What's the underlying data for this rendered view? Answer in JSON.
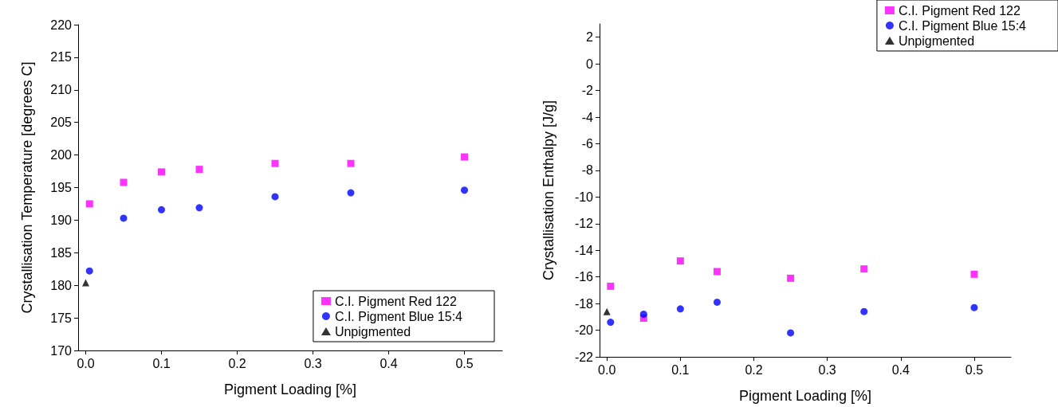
{
  "chart_data": [
    {
      "type": "scatter",
      "xlabel": "Pigment Loading [%]",
      "ylabel": "Crystallisation Temperature [degrees C]",
      "xlim": [
        -0.01,
        0.55
      ],
      "xticks": [
        {
          "value": 0,
          "label": "0.0"
        },
        {
          "value": 0.1,
          "label": "0.1"
        },
        {
          "value": 0.2,
          "label": "0.2"
        },
        {
          "value": 0.3,
          "label": "0.3"
        },
        {
          "value": 0.4,
          "label": "0.4"
        },
        {
          "value": 0.5,
          "label": "0.5"
        }
      ],
      "ylim": [
        170,
        220
      ],
      "yticks": [
        170,
        175,
        180,
        185,
        190,
        195,
        200,
        205,
        210,
        215,
        220
      ],
      "grid": false,
      "legend": "bottom right",
      "series": [
        {
          "name": "C.I. Pigment Red 122",
          "color": "#ff00ff",
          "marker": "square",
          "x": [
            0.005,
            0.05,
            0.1,
            0.15,
            0.25,
            0.35,
            0.5
          ],
          "values": [
            192.5,
            195.8,
            197.4,
            197.8,
            198.7,
            198.7,
            199.7
          ]
        },
        {
          "name": "C.I. Pigment Blue 15:4",
          "color": "#0000ff",
          "marker": "circle",
          "x": [
            0.005,
            0.05,
            0.1,
            0.15,
            0.25,
            0.35,
            0.5
          ],
          "values": [
            182.2,
            190.3,
            191.6,
            191.9,
            193.6,
            194.2,
            194.6
          ]
        },
        {
          "name": "Unpigmented",
          "color": "#000000",
          "marker": "triangle",
          "x": [
            0
          ],
          "values": [
            180.4
          ]
        }
      ]
    },
    {
      "type": "scatter",
      "xlabel": "Pigment Loading [%]",
      "ylabel": "Crystallisation Enthalpy [J/g]",
      "xlim": [
        -0.01,
        0.55
      ],
      "xticks": [
        {
          "value": 0,
          "label": "0.0"
        },
        {
          "value": 0.1,
          "label": "0.1"
        },
        {
          "value": 0.2,
          "label": "0.2"
        },
        {
          "value": 0.3,
          "label": "0.3"
        },
        {
          "value": 0.4,
          "label": "0.4"
        },
        {
          "value": 0.5,
          "label": "0.5"
        }
      ],
      "ylim": [
        -22,
        3
      ],
      "yticks": [
        -22,
        -20,
        -18,
        -16,
        -14,
        -12,
        -10,
        -8,
        -6,
        -4,
        -2,
        0,
        2
      ],
      "grid": false,
      "legend": "top right",
      "series": [
        {
          "name": "C.I. Pigment Red 122",
          "color": "#ff00ff",
          "marker": "square",
          "x": [
            0.005,
            0.05,
            0.1,
            0.15,
            0.25,
            0.35,
            0.5
          ],
          "values": [
            -16.7,
            -19.1,
            -14.8,
            -15.6,
            -16.1,
            -15.4,
            -15.8
          ]
        },
        {
          "name": "C.I. Pigment Blue 15:4",
          "color": "#0000ff",
          "marker": "circle",
          "x": [
            0.005,
            0.05,
            0.1,
            0.15,
            0.25,
            0.35,
            0.5
          ],
          "values": [
            -19.4,
            -18.8,
            -18.4,
            -17.9,
            -20.2,
            -18.6,
            -18.3
          ]
        },
        {
          "name": "Unpigmented",
          "color": "#000000",
          "marker": "triangle",
          "x": [
            0
          ],
          "values": [
            -18.6
          ]
        }
      ]
    }
  ]
}
